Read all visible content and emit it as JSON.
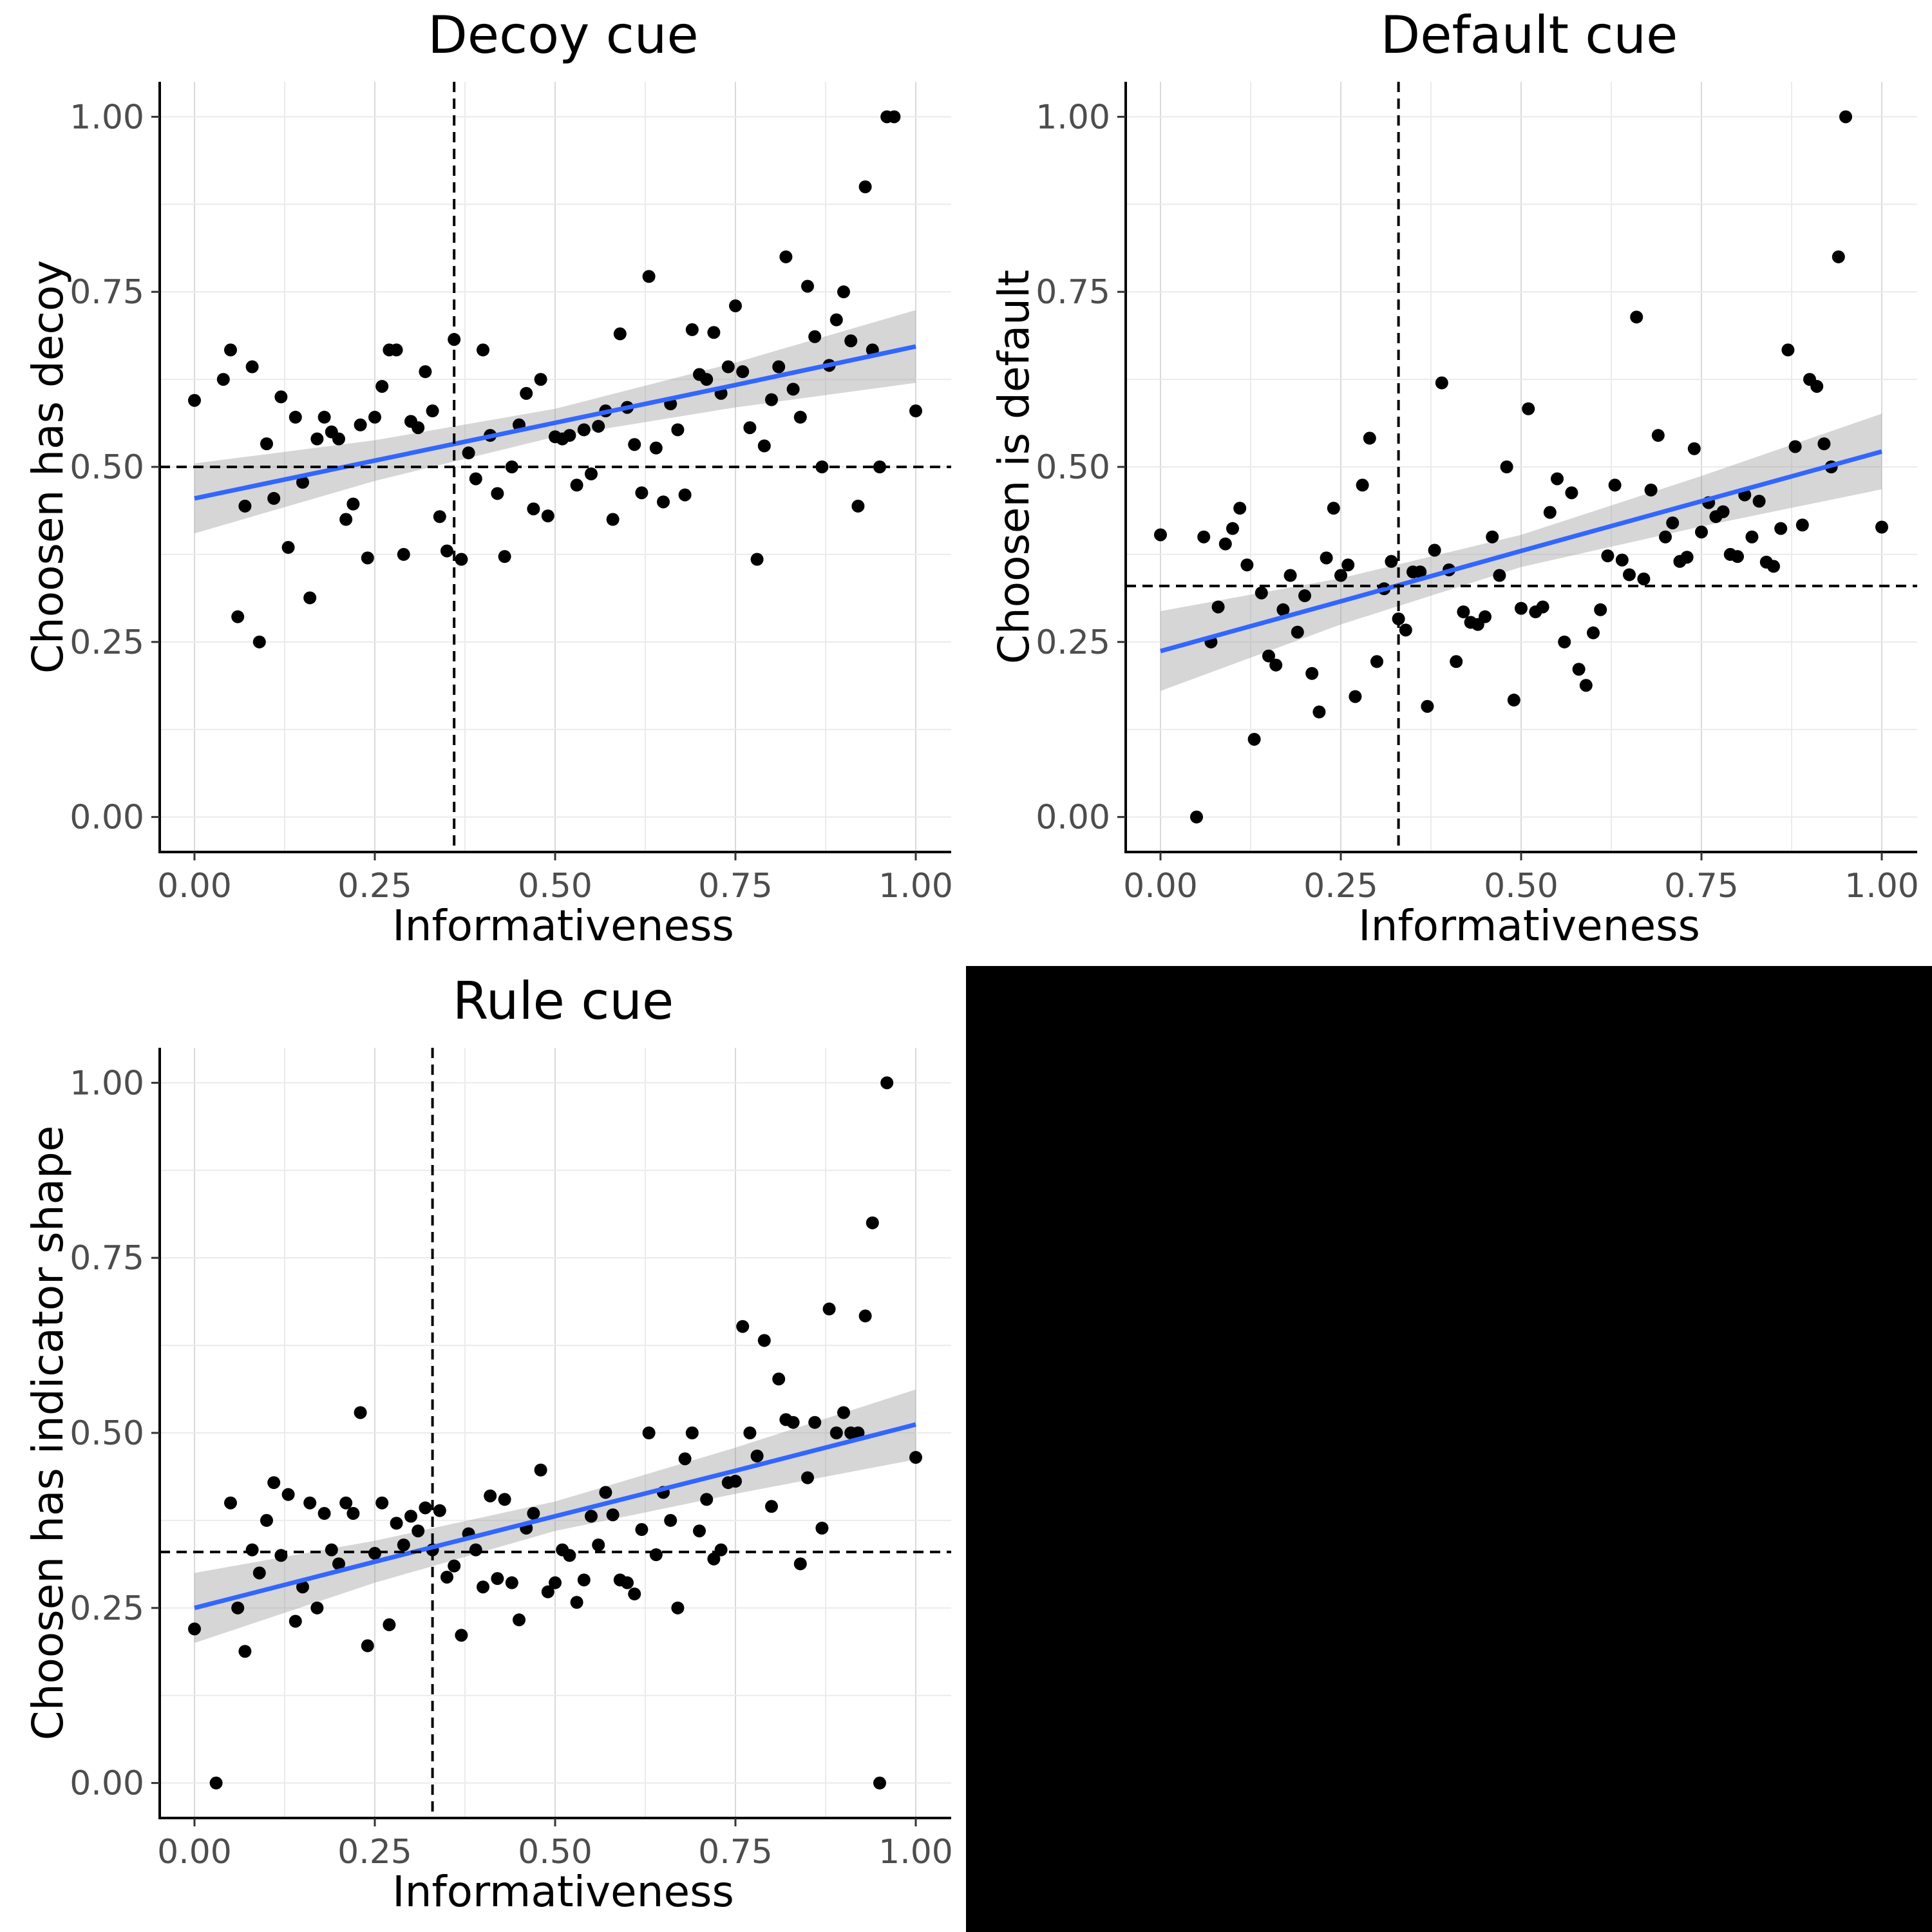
{
  "figure": {
    "blank_panel_color": "#000000"
  },
  "chart_data": [
    {
      "type": "scatter",
      "title": "Decoy cue",
      "xlabel": "Informativeness",
      "ylabel": "Choosen has decoy",
      "xlim": [
        0,
        1
      ],
      "ylim": [
        -0.05,
        1.05
      ],
      "x_ticks": [
        0,
        0.25,
        0.5,
        0.75,
        1
      ],
      "x_tick_labels": [
        "0.00",
        "0.25",
        "0.50",
        "0.75",
        "1.00"
      ],
      "y_ticks": [
        0,
        0.25,
        0.5,
        0.75,
        1
      ],
      "y_tick_labels": [
        "0.00",
        "0.25",
        "0.50",
        "0.75",
        "1.00"
      ],
      "grid": true,
      "reference_lines": {
        "vertical": 0.36,
        "horizontal": 0.5
      },
      "fit": {
        "x": [
          0,
          0.25,
          0.5,
          0.75,
          1
        ],
        "y": [
          0.455,
          0.509,
          0.563,
          0.617,
          0.672
        ],
        "lower": [
          0.405,
          0.48,
          0.543,
          0.585,
          0.62
        ],
        "upper": [
          0.505,
          0.538,
          0.583,
          0.649,
          0.724
        ],
        "color": "#3366ff",
        "band_color": "#999999"
      },
      "points": [
        [
          0.0,
          0.595
        ],
        [
          0.04,
          0.625
        ],
        [
          0.05,
          0.667
        ],
        [
          0.06,
          0.286
        ],
        [
          0.07,
          0.444
        ],
        [
          0.08,
          0.643
        ],
        [
          0.09,
          0.25
        ],
        [
          0.1,
          0.533
        ],
        [
          0.11,
          0.455
        ],
        [
          0.12,
          0.6
        ],
        [
          0.13,
          0.385
        ],
        [
          0.14,
          0.571
        ],
        [
          0.15,
          0.478
        ],
        [
          0.16,
          0.313
        ],
        [
          0.17,
          0.54
        ],
        [
          0.18,
          0.571
        ],
        [
          0.19,
          0.55
        ],
        [
          0.2,
          0.54
        ],
        [
          0.21,
          0.425
        ],
        [
          0.22,
          0.447
        ],
        [
          0.23,
          0.56
        ],
        [
          0.24,
          0.37
        ],
        [
          0.25,
          0.571
        ],
        [
          0.26,
          0.615
        ],
        [
          0.27,
          0.667
        ],
        [
          0.28,
          0.667
        ],
        [
          0.29,
          0.375
        ],
        [
          0.3,
          0.565
        ],
        [
          0.31,
          0.556
        ],
        [
          0.32,
          0.636
        ],
        [
          0.33,
          0.58
        ],
        [
          0.34,
          0.429
        ],
        [
          0.35,
          0.38
        ],
        [
          0.36,
          0.682
        ],
        [
          0.37,
          0.368
        ],
        [
          0.38,
          0.52
        ],
        [
          0.39,
          0.483
        ],
        [
          0.4,
          0.667
        ],
        [
          0.41,
          0.545
        ],
        [
          0.42,
          0.462
        ],
        [
          0.43,
          0.372
        ],
        [
          0.44,
          0.5
        ],
        [
          0.45,
          0.56
        ],
        [
          0.46,
          0.605
        ],
        [
          0.47,
          0.44
        ],
        [
          0.48,
          0.625
        ],
        [
          0.49,
          0.43
        ],
        [
          0.5,
          0.543
        ],
        [
          0.51,
          0.54
        ],
        [
          0.52,
          0.545
        ],
        [
          0.53,
          0.474
        ],
        [
          0.54,
          0.553
        ],
        [
          0.55,
          0.49
        ],
        [
          0.56,
          0.558
        ],
        [
          0.57,
          0.58
        ],
        [
          0.58,
          0.425
        ],
        [
          0.59,
          0.69
        ],
        [
          0.6,
          0.585
        ],
        [
          0.61,
          0.532
        ],
        [
          0.62,
          0.463
        ],
        [
          0.63,
          0.772
        ],
        [
          0.64,
          0.527
        ],
        [
          0.65,
          0.45
        ],
        [
          0.66,
          0.59
        ],
        [
          0.67,
          0.553
        ],
        [
          0.68,
          0.46
        ],
        [
          0.69,
          0.696
        ],
        [
          0.7,
          0.632
        ],
        [
          0.71,
          0.625
        ],
        [
          0.72,
          0.692
        ],
        [
          0.73,
          0.605
        ],
        [
          0.74,
          0.643
        ],
        [
          0.75,
          0.73
        ],
        [
          0.76,
          0.636
        ],
        [
          0.77,
          0.556
        ],
        [
          0.78,
          0.368
        ],
        [
          0.79,
          0.53
        ],
        [
          0.8,
          0.596
        ],
        [
          0.81,
          0.643
        ],
        [
          0.82,
          0.8
        ],
        [
          0.83,
          0.611
        ],
        [
          0.84,
          0.571
        ],
        [
          0.85,
          0.758
        ],
        [
          0.86,
          0.686
        ],
        [
          0.87,
          0.5
        ],
        [
          0.88,
          0.645
        ],
        [
          0.89,
          0.71
        ],
        [
          0.9,
          0.75
        ],
        [
          0.91,
          0.68
        ],
        [
          0.92,
          0.444
        ],
        [
          0.93,
          0.9
        ],
        [
          0.94,
          0.667
        ],
        [
          0.95,
          0.5
        ],
        [
          0.96,
          1.0
        ],
        [
          0.97,
          1.0
        ],
        [
          1.0,
          0.58
        ]
      ]
    },
    {
      "type": "scatter",
      "title": "Default cue",
      "xlabel": "Informativeness",
      "ylabel": "Choosen is default",
      "xlim": [
        0,
        1
      ],
      "ylim": [
        -0.05,
        1.05
      ],
      "x_ticks": [
        0,
        0.25,
        0.5,
        0.75,
        1
      ],
      "x_tick_labels": [
        "0.00",
        "0.25",
        "0.50",
        "0.75",
        "1.00"
      ],
      "y_ticks": [
        0,
        0.25,
        0.5,
        0.75,
        1
      ],
      "y_tick_labels": [
        "0.00",
        "0.25",
        "0.50",
        "0.75",
        "1.00"
      ],
      "grid": true,
      "reference_lines": {
        "vertical": 0.33,
        "horizontal": 0.33
      },
      "fit": {
        "x": [
          0,
          0.25,
          0.5,
          0.75,
          1
        ],
        "y": [
          0.237,
          0.308,
          0.38,
          0.451,
          0.522
        ],
        "lower": [
          0.18,
          0.275,
          0.357,
          0.415,
          0.468
        ],
        "upper": [
          0.294,
          0.341,
          0.403,
          0.487,
          0.576
        ],
        "color": "#3366ff",
        "band_color": "#999999"
      },
      "points": [
        [
          0.0,
          0.403
        ],
        [
          0.05,
          0.0
        ],
        [
          0.06,
          0.4
        ],
        [
          0.07,
          0.25
        ],
        [
          0.08,
          0.3
        ],
        [
          0.09,
          0.39
        ],
        [
          0.1,
          0.412
        ],
        [
          0.11,
          0.441
        ],
        [
          0.12,
          0.36
        ],
        [
          0.13,
          0.111
        ],
        [
          0.14,
          0.32
        ],
        [
          0.15,
          0.23
        ],
        [
          0.16,
          0.217
        ],
        [
          0.17,
          0.296
        ],
        [
          0.18,
          0.345
        ],
        [
          0.19,
          0.264
        ],
        [
          0.2,
          0.316
        ],
        [
          0.21,
          0.205
        ],
        [
          0.22,
          0.15
        ],
        [
          0.23,
          0.37
        ],
        [
          0.24,
          0.441
        ],
        [
          0.25,
          0.345
        ],
        [
          0.26,
          0.36
        ],
        [
          0.27,
          0.172
        ],
        [
          0.28,
          0.474
        ],
        [
          0.29,
          0.541
        ],
        [
          0.3,
          0.222
        ],
        [
          0.31,
          0.326
        ],
        [
          0.32,
          0.365
        ],
        [
          0.33,
          0.283
        ],
        [
          0.34,
          0.267
        ],
        [
          0.35,
          0.35
        ],
        [
          0.36,
          0.35
        ],
        [
          0.37,
          0.158
        ],
        [
          0.38,
          0.381
        ],
        [
          0.39,
          0.62
        ],
        [
          0.4,
          0.353
        ],
        [
          0.41,
          0.222
        ],
        [
          0.42,
          0.293
        ],
        [
          0.43,
          0.278
        ],
        [
          0.44,
          0.275
        ],
        [
          0.45,
          0.286
        ],
        [
          0.46,
          0.4
        ],
        [
          0.47,
          0.345
        ],
        [
          0.48,
          0.5
        ],
        [
          0.49,
          0.167
        ],
        [
          0.5,
          0.298
        ],
        [
          0.51,
          0.583
        ],
        [
          0.52,
          0.293
        ],
        [
          0.53,
          0.3
        ],
        [
          0.54,
          0.435
        ],
        [
          0.55,
          0.483
        ],
        [
          0.56,
          0.25
        ],
        [
          0.57,
          0.463
        ],
        [
          0.58,
          0.211
        ],
        [
          0.59,
          0.188
        ],
        [
          0.6,
          0.263
        ],
        [
          0.61,
          0.296
        ],
        [
          0.62,
          0.373
        ],
        [
          0.63,
          0.474
        ],
        [
          0.64,
          0.367
        ],
        [
          0.65,
          0.346
        ],
        [
          0.66,
          0.714
        ],
        [
          0.67,
          0.34
        ],
        [
          0.68,
          0.467
        ],
        [
          0.69,
          0.545
        ],
        [
          0.7,
          0.4
        ],
        [
          0.71,
          0.42
        ],
        [
          0.72,
          0.365
        ],
        [
          0.73,
          0.371
        ],
        [
          0.74,
          0.526
        ],
        [
          0.75,
          0.407
        ],
        [
          0.76,
          0.449
        ],
        [
          0.77,
          0.429
        ],
        [
          0.78,
          0.436
        ],
        [
          0.79,
          0.375
        ],
        [
          0.8,
          0.372
        ],
        [
          0.81,
          0.46
        ],
        [
          0.82,
          0.4
        ],
        [
          0.83,
          0.451
        ],
        [
          0.84,
          0.364
        ],
        [
          0.85,
          0.358
        ],
        [
          0.86,
          0.412
        ],
        [
          0.87,
          0.667
        ],
        [
          0.88,
          0.529
        ],
        [
          0.89,
          0.417
        ],
        [
          0.9,
          0.625
        ],
        [
          0.91,
          0.615
        ],
        [
          0.92,
          0.533
        ],
        [
          0.93,
          0.5
        ],
        [
          0.94,
          0.8
        ],
        [
          0.95,
          1.0
        ],
        [
          1.0,
          0.414
        ]
      ]
    },
    {
      "type": "scatter",
      "title": "Rule cue",
      "xlabel": "Informativeness",
      "ylabel": "Choosen has indicator shape",
      "xlim": [
        0,
        1
      ],
      "ylim": [
        -0.05,
        1.05
      ],
      "x_ticks": [
        0,
        0.25,
        0.5,
        0.75,
        1
      ],
      "x_tick_labels": [
        "0.00",
        "0.25",
        "0.50",
        "0.75",
        "1.00"
      ],
      "y_ticks": [
        0,
        0.25,
        0.5,
        0.75,
        1
      ],
      "y_tick_labels": [
        "0.00",
        "0.25",
        "0.50",
        "0.75",
        "1.00"
      ],
      "grid": true,
      "reference_lines": {
        "vertical": 0.33,
        "horizontal": 0.33
      },
      "fit": {
        "x": [
          0,
          0.25,
          0.5,
          0.75,
          1
        ],
        "y": [
          0.25,
          0.316,
          0.381,
          0.446,
          0.512
        ],
        "lower": [
          0.2,
          0.286,
          0.36,
          0.413,
          0.462
        ],
        "upper": [
          0.3,
          0.346,
          0.402,
          0.479,
          0.562
        ],
        "color": "#3366ff",
        "band_color": "#999999"
      },
      "points": [
        [
          0.0,
          0.22
        ],
        [
          0.03,
          0.0
        ],
        [
          0.05,
          0.4
        ],
        [
          0.06,
          0.25
        ],
        [
          0.07,
          0.188
        ],
        [
          0.08,
          0.333
        ],
        [
          0.09,
          0.3
        ],
        [
          0.1,
          0.375
        ],
        [
          0.11,
          0.429
        ],
        [
          0.12,
          0.325
        ],
        [
          0.13,
          0.412
        ],
        [
          0.14,
          0.231
        ],
        [
          0.15,
          0.28
        ],
        [
          0.16,
          0.4
        ],
        [
          0.17,
          0.25
        ],
        [
          0.18,
          0.385
        ],
        [
          0.19,
          0.333
        ],
        [
          0.2,
          0.313
        ],
        [
          0.21,
          0.4
        ],
        [
          0.22,
          0.385
        ],
        [
          0.23,
          0.529
        ],
        [
          0.24,
          0.196
        ],
        [
          0.25,
          0.328
        ],
        [
          0.26,
          0.4
        ],
        [
          0.27,
          0.226
        ],
        [
          0.28,
          0.371
        ],
        [
          0.29,
          0.34
        ],
        [
          0.3,
          0.381
        ],
        [
          0.31,
          0.36
        ],
        [
          0.32,
          0.393
        ],
        [
          0.33,
          0.333
        ],
        [
          0.34,
          0.389
        ],
        [
          0.35,
          0.294
        ],
        [
          0.36,
          0.31
        ],
        [
          0.37,
          0.211
        ],
        [
          0.38,
          0.356
        ],
        [
          0.39,
          0.333
        ],
        [
          0.4,
          0.28
        ],
        [
          0.41,
          0.41
        ],
        [
          0.42,
          0.292
        ],
        [
          0.43,
          0.405
        ],
        [
          0.44,
          0.286
        ],
        [
          0.45,
          0.233
        ],
        [
          0.46,
          0.364
        ],
        [
          0.47,
          0.385
        ],
        [
          0.48,
          0.447
        ],
        [
          0.49,
          0.273
        ],
        [
          0.5,
          0.286
        ],
        [
          0.51,
          0.333
        ],
        [
          0.52,
          0.325
        ],
        [
          0.53,
          0.258
        ],
        [
          0.54,
          0.29
        ],
        [
          0.55,
          0.381
        ],
        [
          0.56,
          0.34
        ],
        [
          0.57,
          0.415
        ],
        [
          0.58,
          0.383
        ],
        [
          0.59,
          0.29
        ],
        [
          0.6,
          0.286
        ],
        [
          0.61,
          0.27
        ],
        [
          0.62,
          0.362
        ],
        [
          0.63,
          0.5
        ],
        [
          0.64,
          0.326
        ],
        [
          0.65,
          0.415
        ],
        [
          0.66,
          0.375
        ],
        [
          0.67,
          0.25
        ],
        [
          0.68,
          0.463
        ],
        [
          0.69,
          0.5
        ],
        [
          0.7,
          0.36
        ],
        [
          0.71,
          0.405
        ],
        [
          0.72,
          0.32
        ],
        [
          0.73,
          0.333
        ],
        [
          0.74,
          0.429
        ],
        [
          0.75,
          0.431
        ],
        [
          0.76,
          0.652
        ],
        [
          0.77,
          0.5
        ],
        [
          0.78,
          0.467
        ],
        [
          0.79,
          0.632
        ],
        [
          0.8,
          0.395
        ],
        [
          0.81,
          0.577
        ],
        [
          0.82,
          0.519
        ],
        [
          0.83,
          0.515
        ],
        [
          0.84,
          0.313
        ],
        [
          0.85,
          0.436
        ],
        [
          0.86,
          0.515
        ],
        [
          0.87,
          0.364
        ],
        [
          0.88,
          0.677
        ],
        [
          0.89,
          0.5
        ],
        [
          0.9,
          0.529
        ],
        [
          0.91,
          0.5
        ],
        [
          0.92,
          0.5
        ],
        [
          0.93,
          0.667
        ],
        [
          0.94,
          0.8
        ],
        [
          0.95,
          0.0
        ],
        [
          0.96,
          1.0
        ],
        [
          1.0,
          0.465
        ]
      ]
    }
  ]
}
